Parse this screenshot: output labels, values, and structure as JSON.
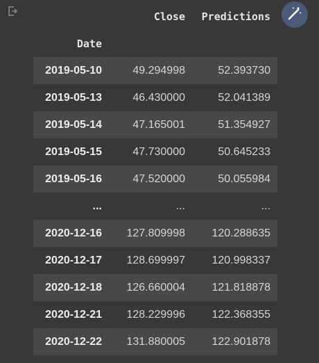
{
  "table": {
    "columns": [
      "Close",
      "Predictions"
    ],
    "index_name": "Date",
    "rows": [
      {
        "date": "2019-05-10",
        "close": "49.294998",
        "pred": "52.393730"
      },
      {
        "date": "2019-05-13",
        "close": "46.430000",
        "pred": "52.041389"
      },
      {
        "date": "2019-05-14",
        "close": "47.165001",
        "pred": "51.354927"
      },
      {
        "date": "2019-05-15",
        "close": "47.730000",
        "pred": "50.645233"
      },
      {
        "date": "2019-05-16",
        "close": "47.520000",
        "pred": "50.055984"
      },
      {
        "date": "...",
        "close": "...",
        "pred": "..."
      },
      {
        "date": "2020-12-16",
        "close": "127.809998",
        "pred": "120.288635"
      },
      {
        "date": "2020-12-17",
        "close": "128.699997",
        "pred": "120.998337"
      },
      {
        "date": "2020-12-18",
        "close": "126.660004",
        "pred": "121.818878"
      },
      {
        "date": "2020-12-21",
        "close": "128.229996",
        "pred": "122.368355"
      },
      {
        "date": "2020-12-22",
        "close": "131.880005",
        "pred": "122.901878"
      }
    ]
  },
  "icons": {
    "output": "output-redirect-icon",
    "magic": "magic-wand-icon"
  },
  "colors": {
    "background": "#383838",
    "stripe": "#484848",
    "magic_button": "#4a5a78"
  }
}
